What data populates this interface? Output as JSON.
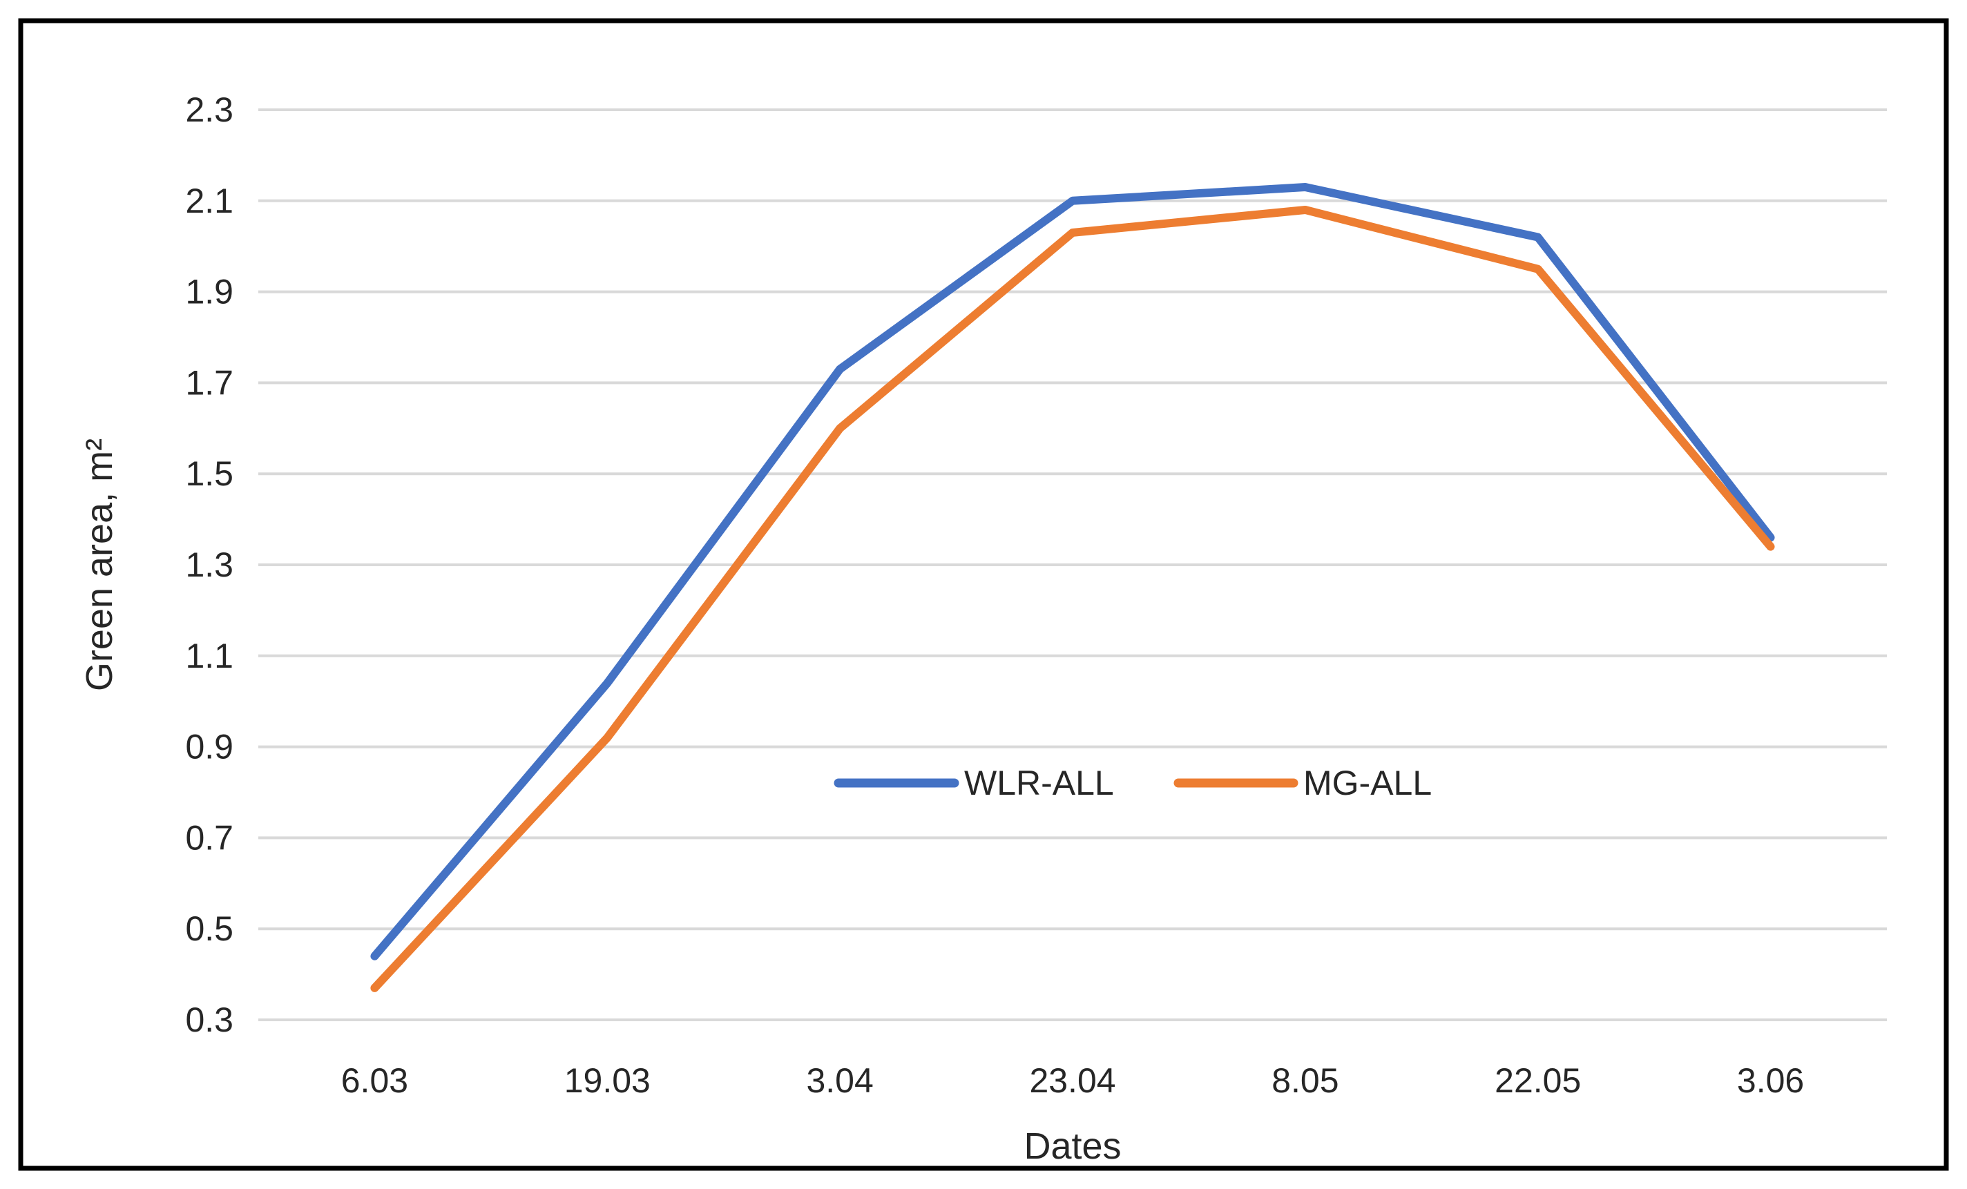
{
  "figure": {
    "background": "#FFFFFF",
    "border_color": "#000000"
  },
  "chart_data": {
    "type": "line",
    "title": "",
    "xlabel": "Dates",
    "ylabel": "Green area, m²",
    "categories": [
      "6.03",
      "19.03",
      "3.04",
      "23.04",
      "8.05",
      "22.05",
      "3.06"
    ],
    "series": [
      {
        "name": "WLR-ALL",
        "color": "#4472C4",
        "values": [
          0.44,
          1.04,
          1.73,
          2.1,
          2.13,
          2.02,
          1.36
        ]
      },
      {
        "name": "MG-ALL",
        "color": "#ED7D31",
        "values": [
          0.37,
          0.92,
          1.6,
          2.03,
          2.08,
          1.95,
          1.34
        ]
      }
    ],
    "ylim": [
      0.3,
      2.3
    ],
    "ytick_step": 0.2,
    "ytick_labels": [
      "0.3",
      "0.5",
      "0.7",
      "0.9",
      "1.1",
      "1.3",
      "1.5",
      "1.7",
      "1.9",
      "2.1",
      "2.3"
    ],
    "grid": "horizontal",
    "gridline_color": "#D9D9D9",
    "axis_text_color": "#262626",
    "legend_position": "inside-center",
    "legend": [
      "WLR-ALL",
      "MG-ALL"
    ]
  }
}
